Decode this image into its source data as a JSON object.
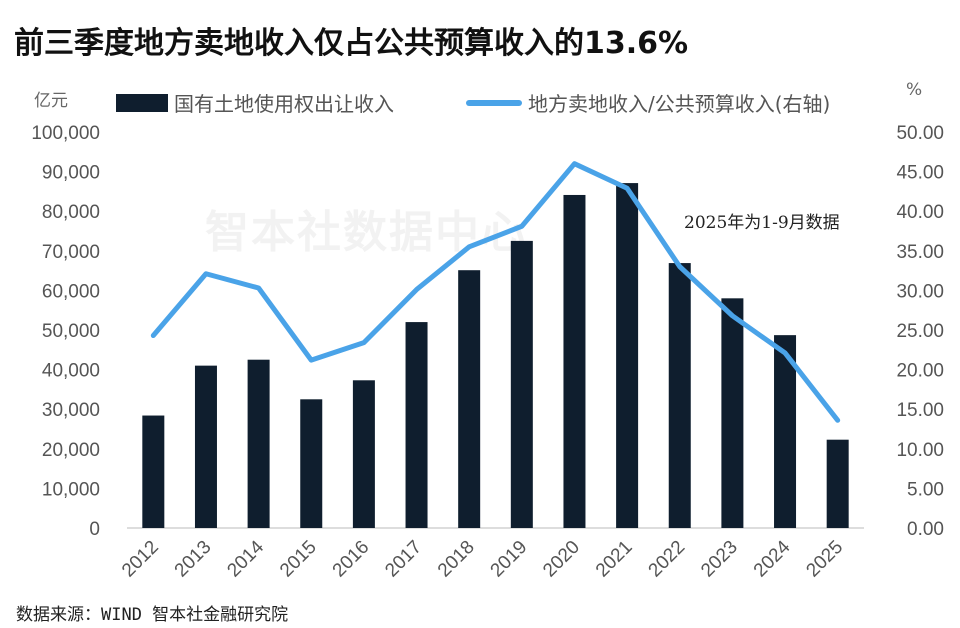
{
  "chart_data": {
    "type": "bar+line",
    "title": "前三季度地方卖地收入仅占公共预算收入的13.6%",
    "left_unit": "亿元",
    "right_unit": "%",
    "categories": [
      "2012",
      "2013",
      "2014",
      "2015",
      "2016",
      "2017",
      "2018",
      "2019",
      "2020",
      "2021",
      "2022",
      "2023",
      "2024",
      "2025"
    ],
    "series": [
      {
        "name": "国有土地使用权出让收入",
        "type": "bar",
        "axis": "left",
        "color": "#0f1e2e",
        "values": [
          28400,
          41000,
          42500,
          32500,
          37300,
          52000,
          65100,
          72500,
          84100,
          87100,
          66900,
          58000,
          48700,
          22300
        ]
      },
      {
        "name": "地方卖地收入/公共预算收入(右轴)",
        "type": "line",
        "axis": "right",
        "color": "#4aa3e8",
        "values": [
          24.3,
          32.1,
          30.3,
          21.2,
          23.4,
          30.1,
          35.5,
          38.1,
          46.0,
          42.9,
          33.0,
          26.8,
          22.1,
          13.6
        ]
      }
    ],
    "left_axis": {
      "range": [
        0,
        100000
      ],
      "ticks": [
        "0",
        "10,000",
        "20,000",
        "30,000",
        "40,000",
        "50,000",
        "60,000",
        "70,000",
        "80,000",
        "90,000",
        "100,000"
      ]
    },
    "right_axis": {
      "range": [
        0,
        50
      ],
      "ticks": [
        "0.00",
        "5.00",
        "10.00",
        "15.00",
        "20.00",
        "25.00",
        "30.00",
        "35.00",
        "40.00",
        "45.00",
        "50.00"
      ]
    },
    "annotation": "2025年为1-9月数据",
    "legend_position": "top",
    "grid": false
  },
  "watermark": "智本社数据中心",
  "source": "数据来源：WIND 智本社金融研究院"
}
